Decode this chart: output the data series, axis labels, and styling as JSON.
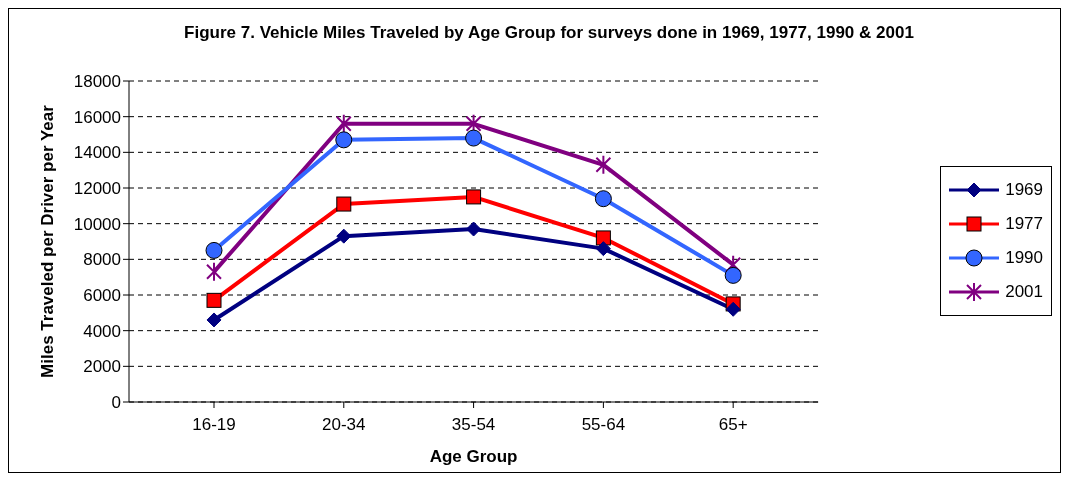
{
  "chart_data": {
    "type": "line",
    "title": "Figure 7.  Vehicle Miles Traveled by Age Group for surveys done in 1969, 1977, 1990 & 2001",
    "xlabel": "Age Group",
    "ylabel": "Miles Traveled per Driver per Year",
    "categories": [
      "16-19",
      "20-34",
      "35-54",
      "55-64",
      "65+"
    ],
    "series": [
      {
        "name": "1969",
        "color": "#000080",
        "marker": "diamond",
        "values": [
          4600,
          9300,
          9700,
          8600,
          5200
        ]
      },
      {
        "name": "1977",
        "color": "#ff0000",
        "marker": "square",
        "values": [
          5700,
          11100,
          11500,
          9200,
          5500
        ]
      },
      {
        "name": "1990",
        "color": "#3366ff",
        "marker": "circle",
        "values": [
          8500,
          14700,
          14800,
          11400,
          7100
        ]
      },
      {
        "name": "2001",
        "color": "#800080",
        "marker": "cross",
        "values": [
          7300,
          15600,
          15600,
          13300,
          7700
        ]
      }
    ],
    "ylim": [
      0,
      18000
    ],
    "yticks": [
      0,
      2000,
      4000,
      6000,
      8000,
      10000,
      12000,
      14000,
      16000,
      18000
    ],
    "grid": "y",
    "legend": "right"
  }
}
